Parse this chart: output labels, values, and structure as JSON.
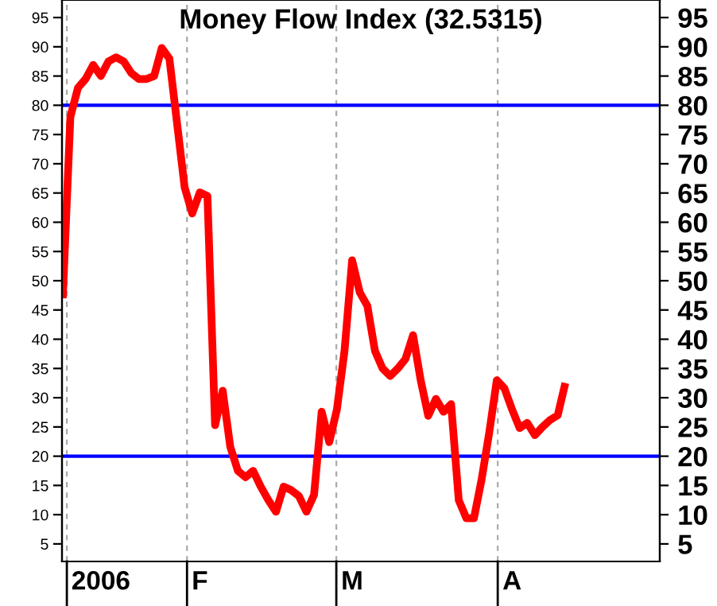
{
  "chart_data": {
    "type": "line",
    "title": "Money Flow Index (32.5315)",
    "categories": [
      null,
      null,
      null,
      null,
      null,
      "2006",
      null,
      null,
      null,
      null,
      null,
      null,
      null,
      null,
      null,
      null,
      null,
      null,
      "F",
      null,
      null,
      null,
      null,
      null,
      null,
      null,
      null,
      null,
      null,
      null,
      null,
      null,
      null,
      null,
      null,
      null,
      null,
      null,
      "M",
      null,
      null,
      null,
      null,
      null,
      null,
      null,
      null,
      null,
      null,
      null,
      null,
      null,
      null,
      null,
      null,
      null,
      null,
      null,
      null,
      "A",
      null,
      null,
      null,
      null,
      null,
      null,
      null,
      null,
      null,
      null,
      null,
      null,
      null,
      null,
      null,
      null,
      null,
      null,
      null
    ],
    "series": [
      {
        "color": "#ff0000",
        "values": [
          47,
          78,
          83,
          84.5,
          86.9,
          85,
          87.5,
          88.2,
          87.5,
          85.5,
          84.5,
          84.5,
          85,
          89.8,
          88,
          77,
          66,
          61.5,
          65.1,
          64.5,
          25.3,
          31.2,
          21.6,
          17.5,
          16.4,
          17.5,
          14.8,
          12.5,
          10.5,
          14.8,
          14.2,
          13.2,
          10.5,
          13.4,
          27.6,
          22.4,
          28,
          38,
          53.5,
          48,
          45.7,
          38,
          35,
          33.7,
          35,
          36.6,
          40.7,
          33,
          26.9,
          29.8,
          27.6,
          28.9,
          12.5,
          9.4,
          9.4,
          16,
          24,
          33,
          31.6,
          28,
          24.8,
          25.7,
          23.6,
          25,
          26.2,
          27,
          32.5,
          null,
          null,
          null,
          null,
          null,
          null,
          null,
          null,
          null,
          null,
          null,
          null
        ]
      }
    ],
    "ylim": [
      2,
      98
    ],
    "yticks": [
      5,
      10,
      15,
      20,
      25,
      30,
      35,
      40,
      45,
      50,
      55,
      60,
      65,
      70,
      75,
      80,
      85,
      90,
      95
    ],
    "y2lim": [
      2,
      98
    ],
    "y2ticks": [
      5,
      10,
      15,
      20,
      25,
      30,
      35,
      40,
      45,
      50,
      55,
      60,
      65,
      70,
      75,
      80,
      85,
      90,
      95
    ],
    "ref_lines": [
      {
        "axis": "y",
        "value": 80,
        "color": "#0000ff"
      },
      {
        "axis": "y",
        "value": 20,
        "color": "#0000ff"
      }
    ],
    "grid": "x",
    "line_style": "solid",
    "marker": "none"
  }
}
